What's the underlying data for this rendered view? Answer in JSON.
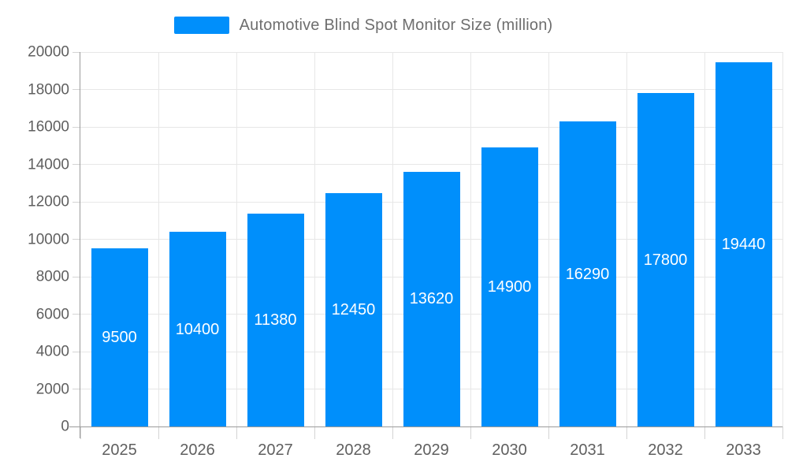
{
  "chart_data": {
    "type": "bar",
    "title": "Automotive Blind Spot Monitor Size (million)",
    "categories": [
      "2025",
      "2026",
      "2027",
      "2028",
      "2029",
      "2030",
      "2031",
      "2032",
      "2033"
    ],
    "values": [
      9500,
      10400,
      11380,
      12450,
      13620,
      14900,
      16290,
      17800,
      19440
    ],
    "series_name": "Automotive Blind Spot Monitor Size (million)",
    "xlabel": "",
    "ylabel": "",
    "ylim": [
      0,
      20000
    ],
    "ytick_step": 2000,
    "ytick_labels": [
      "0",
      "2000",
      "4000",
      "6000",
      "8000",
      "10000",
      "12000",
      "14000",
      "16000",
      "18000",
      "20000"
    ],
    "grid": true,
    "legend_position": "top",
    "bar_value_labels_shown": true
  },
  "colors": {
    "bar": "#008FFB",
    "grid": "#e7e7e7",
    "axis": "#9b9b9b",
    "tick": "#d4d4d4",
    "axis_label": "#5f5f5f",
    "legend_text": "#6e6e6e",
    "value_label": "#ffffff",
    "background": "#ffffff"
  }
}
